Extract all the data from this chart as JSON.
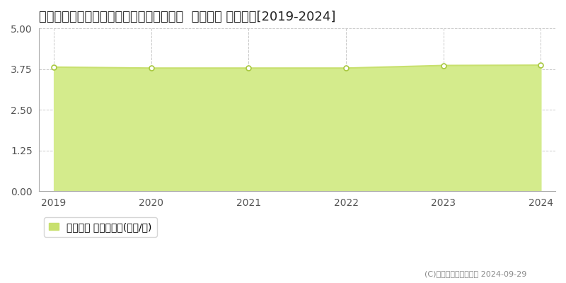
{
  "title": "大分県大分市大字三芳字庄原１１１６番１  基準地価 地価推移[2019-2024]",
  "years": [
    2019,
    2020,
    2021,
    2022,
    2023,
    2024
  ],
  "values": [
    3.81,
    3.78,
    3.78,
    3.78,
    3.86,
    3.87
  ],
  "ylim": [
    0,
    5
  ],
  "yticks": [
    0,
    1.25,
    2.5,
    3.75,
    5
  ],
  "line_color": "#c8e06e",
  "fill_color": "#d4eb8c",
  "marker_color": "#ffffff",
  "marker_edge_color": "#a8c840",
  "grid_color": "#bbbbbb",
  "background_color": "#ffffff",
  "legend_label": "基準地価 平均嵪単価(万円/嵪)",
  "copyright_text": "(C)土地価格ドットコム 2024-09-29",
  "title_fontsize": 13,
  "axis_fontsize": 10,
  "legend_fontsize": 10
}
